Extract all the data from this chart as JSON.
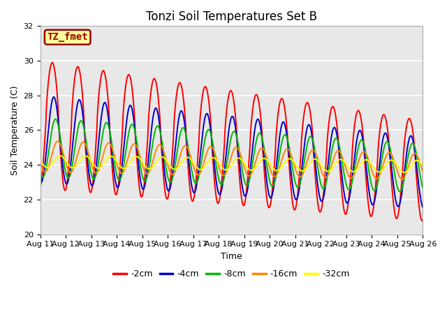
{
  "title": "Tonzi Soil Temperatures Set B",
  "xlabel": "Time",
  "ylabel": "Soil Temperature (C)",
  "ylim": [
    20,
    32
  ],
  "xlim": [
    0,
    15
  ],
  "x_tick_labels": [
    "Aug 11",
    "Aug 12",
    "Aug 13",
    "Aug 14",
    "Aug 15",
    "Aug 16",
    "Aug 17",
    "Aug 18",
    "Aug 19",
    "Aug 20",
    "Aug 21",
    "Aug 22",
    "Aug 23",
    "Aug 24",
    "Aug 25",
    "Aug 26"
  ],
  "y_ticks": [
    20,
    22,
    24,
    26,
    28,
    30,
    32
  ],
  "series": [
    {
      "label": "-2cm",
      "color": "#ff0000",
      "amplitude": 3.5,
      "mean": 26.5,
      "phase": 0.0,
      "trend": -0.18,
      "amp_trend": -0.05
    },
    {
      "label": "-4cm",
      "color": "#0000cc",
      "amplitude": 2.5,
      "mean": 25.5,
      "phase": 0.38,
      "trend": -0.13,
      "amp_trend": -0.03
    },
    {
      "label": "-8cm",
      "color": "#00bb00",
      "amplitude": 1.7,
      "mean": 25.0,
      "phase": 0.8,
      "trend": -0.08,
      "amp_trend": -0.02
    },
    {
      "label": "-16cm",
      "color": "#ff8800",
      "amplitude": 0.9,
      "mean": 24.5,
      "phase": 1.35,
      "trend": -0.04,
      "amp_trend": -0.01
    },
    {
      "label": "-32cm",
      "color": "#ffff00",
      "amplitude": 0.35,
      "mean": 24.2,
      "phase": 1.9,
      "trend": -0.02,
      "amp_trend": 0.0
    }
  ],
  "annotation_text": "TZ_fmet",
  "annotation_bg": "#ffff99",
  "annotation_border": "#990000",
  "plot_bg": "#e8e8e8",
  "fig_bg": "#ffffff",
  "grid_color": "#ffffff",
  "linewidth": 1.4,
  "title_fontsize": 12,
  "axis_label_fontsize": 9,
  "tick_fontsize": 8,
  "legend_fontsize": 9
}
